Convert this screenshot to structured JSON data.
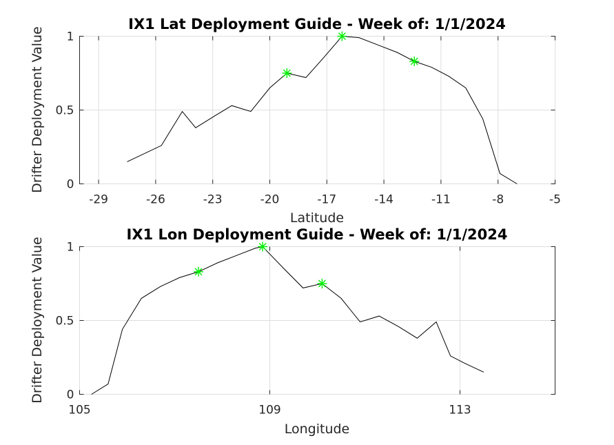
{
  "chart_data": [
    {
      "type": "line",
      "title": "IX1 Lat Deployment Guide - Week of: 1/1/2024",
      "xlabel": "Latitude",
      "ylabel": "Drifter Deployment Value",
      "xlim": [
        -30,
        -5
      ],
      "ylim": [
        0,
        1
      ],
      "xticks": [
        -29,
        -26,
        -23,
        -20,
        -17,
        -14,
        -11,
        -8,
        -5
      ],
      "yticks": [
        0,
        0.5,
        1
      ],
      "grid": true,
      "x": [
        -27.5,
        -25.7,
        -24.6,
        -23.9,
        -22.9,
        -22.0,
        -21.0,
        -20.0,
        -19.1,
        -18.1,
        -17.2,
        -16.2,
        -15.3,
        -14.3,
        -13.3,
        -12.4,
        -11.5,
        -10.6,
        -9.7,
        -8.8,
        -7.9,
        -7.0
      ],
      "values": [
        0.15,
        0.26,
        0.49,
        0.38,
        0.46,
        0.53,
        0.49,
        0.65,
        0.75,
        0.72,
        0.85,
        1.0,
        0.99,
        0.94,
        0.89,
        0.83,
        0.79,
        0.73,
        0.65,
        0.44,
        0.07,
        0.0
      ],
      "highlights": {
        "color": "#00ee00",
        "x": [
          -19.1,
          -16.2,
          -12.4
        ],
        "values": [
          0.75,
          1.0,
          0.83
        ]
      }
    },
    {
      "type": "line",
      "title": "IX1 Lon Deployment Guide - Week of: 1/1/2024",
      "xlabel": "Longitude",
      "ylabel": "Drifter Deployment Value",
      "xlim": [
        105,
        115
      ],
      "ylim": [
        0,
        1
      ],
      "xticks": [
        105,
        109,
        113
      ],
      "yticks": [
        0,
        0.5,
        1
      ],
      "grid": true,
      "x": [
        105.25,
        105.6,
        105.9,
        106.3,
        106.7,
        107.1,
        107.5,
        107.9,
        108.3,
        108.7,
        108.85,
        109.3,
        109.7,
        110.1,
        110.5,
        110.9,
        111.3,
        111.7,
        112.1,
        112.5,
        112.8,
        113.1,
        113.5
      ],
      "values": [
        0.0,
        0.07,
        0.44,
        0.65,
        0.73,
        0.79,
        0.83,
        0.89,
        0.94,
        0.99,
        1.0,
        0.85,
        0.72,
        0.75,
        0.65,
        0.49,
        0.53,
        0.46,
        0.38,
        0.49,
        0.26,
        0.21,
        0.15
      ],
      "highlights": {
        "color": "#00ee00",
        "x": [
          107.5,
          108.85,
          110.1
        ],
        "values": [
          0.83,
          1.0,
          0.75
        ]
      }
    }
  ]
}
